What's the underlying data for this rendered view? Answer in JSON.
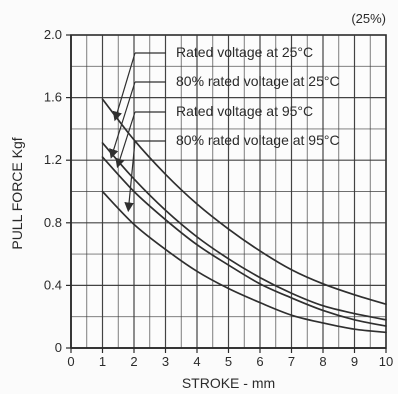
{
  "chart_data": {
    "type": "line",
    "note": "(25%)",
    "xlabel": "STROKE - mm",
    "ylabel": "PULL FORCE Kgf",
    "xlim": [
      0,
      10
    ],
    "ylim": [
      0,
      2.0
    ],
    "x_ticks": [
      "0",
      "1",
      "2",
      "3",
      "4",
      "5",
      "6",
      "7",
      "8",
      "9",
      "10"
    ],
    "y_ticks": [
      "0",
      "0.4",
      "0.8",
      "1.2",
      "1.6",
      "2.0"
    ],
    "grid": true,
    "series": [
      {
        "name": "Rated voltage at 25°C",
        "x": [
          1,
          2,
          3,
          4,
          5,
          6,
          7,
          8,
          9,
          10
        ],
        "y": [
          1.59,
          1.33,
          1.11,
          0.92,
          0.76,
          0.62,
          0.5,
          0.41,
          0.34,
          0.28
        ]
      },
      {
        "name": "80% rated voltage at 25°C",
        "x": [
          1,
          2,
          3,
          4,
          5,
          6,
          7,
          8,
          9,
          10
        ],
        "y": [
          1.31,
          1.08,
          0.88,
          0.71,
          0.57,
          0.45,
          0.35,
          0.27,
          0.22,
          0.18
        ]
      },
      {
        "name": "Rated voltage at 95°C",
        "x": [
          1,
          2,
          3,
          4,
          5,
          6,
          7,
          8,
          9,
          10
        ],
        "y": [
          1.22,
          1.0,
          0.82,
          0.66,
          0.53,
          0.41,
          0.32,
          0.24,
          0.18,
          0.14
        ]
      },
      {
        "name": "80% rated voltage at 95°C",
        "x": [
          1,
          2,
          3,
          4,
          5,
          6,
          7,
          8,
          9,
          10
        ],
        "y": [
          1.0,
          0.79,
          0.63,
          0.49,
          0.38,
          0.29,
          0.21,
          0.16,
          0.12,
          0.1
        ]
      }
    ],
    "colors": {
      "axis": "#2b2b2b",
      "grid": "#3a3a3a",
      "series": "#2f2f2f",
      "leader": "#2f2f2f"
    }
  }
}
